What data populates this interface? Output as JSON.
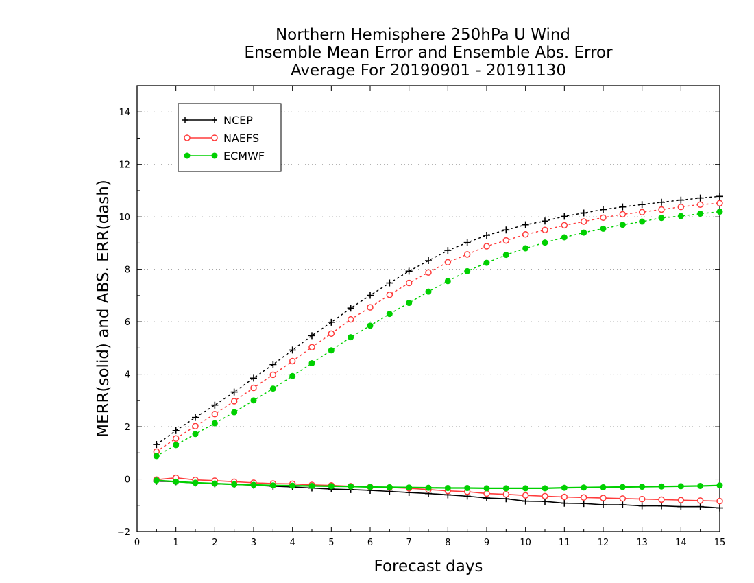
{
  "chart_data": {
    "type": "line",
    "title": "Northern Hemisphere 250hPa U Wind",
    "subtitle_1": "Ensemble Mean Error and Ensemble Abs. Error",
    "subtitle_2": "Average For 20190901 - 20191130",
    "xlabel": "Forecast days",
    "ylabel": "MERR(solid) and ABS. ERR(dash)",
    "xlim": [
      0,
      15
    ],
    "ylim": [
      -2,
      15
    ],
    "x_ticks": [
      "0",
      "1",
      "2",
      "3",
      "4",
      "5",
      "6",
      "7",
      "8",
      "9",
      "10",
      "11",
      "12",
      "13",
      "14",
      "15"
    ],
    "y_ticks": [
      "−2",
      "0",
      "2",
      "4",
      "6",
      "8",
      "10",
      "12",
      "14"
    ],
    "y_tick_values": [
      -2,
      0,
      2,
      4,
      6,
      8,
      10,
      12,
      14
    ],
    "grid": "horizontal dotted",
    "legend_position": "top-left",
    "x": [
      0.5,
      1,
      1.5,
      2,
      2.5,
      3,
      3.5,
      4,
      4.5,
      5,
      5.5,
      6,
      6.5,
      7,
      7.5,
      8,
      8.5,
      9,
      9.5,
      10,
      10.5,
      11,
      11.5,
      12,
      12.5,
      13,
      13.5,
      14,
      14.5,
      15
    ],
    "series": [
      {
        "name": "NCEP",
        "color": "#000000",
        "marker": "plus",
        "abs_err": [
          1.32,
          1.85,
          2.35,
          2.82,
          3.32,
          3.85,
          4.37,
          4.92,
          5.47,
          5.98,
          6.52,
          7.01,
          7.48,
          7.93,
          8.33,
          8.72,
          9.02,
          9.3,
          9.5,
          9.7,
          9.84,
          10.02,
          10.15,
          10.28,
          10.38,
          10.47,
          10.56,
          10.64,
          10.72,
          10.78
        ],
        "mean_err": [
          -0.08,
          -0.1,
          -0.15,
          -0.18,
          -0.2,
          -0.23,
          -0.27,
          -0.3,
          -0.34,
          -0.38,
          -0.4,
          -0.43,
          -0.47,
          -0.51,
          -0.55,
          -0.6,
          -0.65,
          -0.72,
          -0.75,
          -0.84,
          -0.85,
          -0.92,
          -0.93,
          -0.98,
          -0.98,
          -1.02,
          -1.02,
          -1.05,
          -1.05,
          -1.1
        ]
      },
      {
        "name": "NAEFS",
        "color": "#ff3b3b",
        "marker": "open-circle",
        "abs_err": [
          1.05,
          1.55,
          2.02,
          2.48,
          2.97,
          3.48,
          3.98,
          4.5,
          5.03,
          5.55,
          6.09,
          6.55,
          7.03,
          7.48,
          7.88,
          8.27,
          8.57,
          8.88,
          9.1,
          9.33,
          9.5,
          9.68,
          9.82,
          9.97,
          10.1,
          10.18,
          10.28,
          10.38,
          10.47,
          10.52
        ],
        "mean_err": [
          -0.02,
          0.05,
          -0.03,
          -0.06,
          -0.1,
          -0.14,
          -0.17,
          -0.18,
          -0.22,
          -0.24,
          -0.27,
          -0.3,
          -0.32,
          -0.35,
          -0.4,
          -0.45,
          -0.48,
          -0.55,
          -0.58,
          -0.62,
          -0.65,
          -0.68,
          -0.7,
          -0.72,
          -0.74,
          -0.76,
          -0.78,
          -0.8,
          -0.82,
          -0.84
        ]
      },
      {
        "name": "ECMWF",
        "color": "#00d000",
        "marker": "filled-circle",
        "abs_err": [
          0.88,
          1.3,
          1.72,
          2.13,
          2.55,
          3.0,
          3.45,
          3.93,
          4.42,
          4.91,
          5.41,
          5.85,
          6.3,
          6.72,
          7.15,
          7.55,
          7.93,
          8.25,
          8.55,
          8.8,
          9.02,
          9.22,
          9.4,
          9.55,
          9.7,
          9.82,
          9.96,
          10.03,
          10.12,
          10.2
        ],
        "mean_err": [
          -0.05,
          -0.1,
          -0.14,
          -0.17,
          -0.2,
          -0.22,
          -0.24,
          -0.25,
          -0.26,
          -0.27,
          -0.28,
          -0.3,
          -0.31,
          -0.32,
          -0.33,
          -0.34,
          -0.34,
          -0.35,
          -0.35,
          -0.35,
          -0.35,
          -0.33,
          -0.32,
          -0.31,
          -0.3,
          -0.29,
          -0.28,
          -0.27,
          -0.26,
          -0.24
        ]
      }
    ]
  }
}
